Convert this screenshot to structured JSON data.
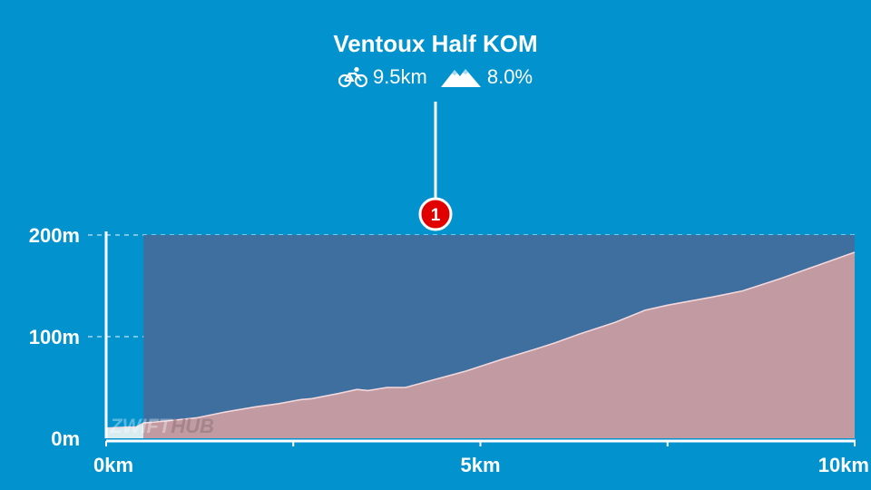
{
  "segment": {
    "title": "Ventoux Half KOM",
    "distance": "9.5km",
    "grade": "8.0%",
    "distance_icon": "bicycle-icon",
    "grade_icon": "mountain-icon"
  },
  "marker": {
    "label": "1",
    "color": "#e00000"
  },
  "watermark": {
    "part1": "ZWIFT",
    "part2": "HUB"
  },
  "colors": {
    "background": "#0292ce",
    "segment_band": "#3f6f9e",
    "profile_fill": "#c19aa2",
    "profile_line": "#f3d8dc",
    "pre_segment_fill": "#d9ecef"
  },
  "chart_data": {
    "type": "area",
    "xlabel": "",
    "ylabel": "",
    "xlim": [
      0,
      10
    ],
    "ylim": [
      0,
      200
    ],
    "x_tick_labels": [
      "0km",
      "5km",
      "10km"
    ],
    "x_tick_values": [
      0,
      2.5,
      5,
      7.5,
      10
    ],
    "y_tick_labels": [
      "0m",
      "100m",
      "200m"
    ],
    "y_tick_values": [
      0,
      100,
      200
    ],
    "grid": "horizontal dashed",
    "segment_range_km": [
      0.5,
      10
    ],
    "segment_marker_km": 4.4,
    "series": [
      {
        "x": [
          0,
          0.3,
          0.4,
          0.5,
          0.8,
          1.2,
          1.6,
          2.0,
          2.3,
          2.6,
          2.75,
          3.1,
          3.35,
          3.5,
          3.75,
          4.0,
          4.4,
          4.8,
          5.3,
          5.75,
          6.0,
          6.3,
          6.8,
          7.2,
          7.5,
          7.8,
          8.1,
          8.5,
          9.0,
          9.5,
          10.0
        ],
        "y": [
          10,
          11,
          11,
          15,
          17,
          20,
          26,
          31,
          34,
          38,
          39,
          44,
          48,
          47,
          50,
          50,
          58,
          66,
          78,
          88,
          94,
          102,
          114,
          126,
          131,
          135,
          139,
          145,
          157,
          170,
          183
        ]
      }
    ]
  }
}
